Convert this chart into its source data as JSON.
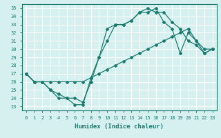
{
  "title": "",
  "xlabel": "Humidex (Indice chaleur)",
  "ylabel": "",
  "bg_color": "#d6f0f0",
  "grid_color": "#ffffff",
  "line_color": "#1a7a6e",
  "xlim": [
    -0.5,
    23.5
  ],
  "ylim": [
    22.5,
    35.5
  ],
  "yticks": [
    23,
    24,
    25,
    26,
    27,
    28,
    29,
    30,
    31,
    32,
    33,
    34,
    35
  ],
  "xticks": [
    0,
    1,
    2,
    3,
    4,
    5,
    6,
    7,
    8,
    9,
    10,
    11,
    12,
    13,
    14,
    15,
    16,
    17,
    18,
    19,
    20,
    21,
    22,
    23
  ],
  "line1_x": [
    0,
    1,
    2,
    3,
    4,
    5,
    6,
    7,
    8,
    9,
    10,
    11,
    12,
    13,
    14,
    15,
    16,
    17,
    18,
    19,
    20,
    21,
    22,
    23
  ],
  "line1_y": [
    27,
    26,
    26,
    25,
    24,
    24,
    23.2,
    23.2,
    26.5,
    29,
    32.5,
    33,
    33,
    33.5,
    34.5,
    35,
    34.5,
    34.5,
    33.3,
    32.5,
    31,
    30.5,
    29.5,
    30
  ],
  "line2_x": [
    0,
    1,
    2,
    3,
    4,
    5,
    6,
    7,
    8,
    9,
    10,
    11,
    12,
    13,
    14,
    15,
    16,
    17,
    18,
    19,
    20,
    21,
    22,
    23
  ],
  "line2_y": [
    27,
    26,
    26,
    26,
    26,
    26,
    26,
    26,
    26.5,
    27,
    27.5,
    28,
    28.5,
    29,
    29.5,
    30,
    30.5,
    31,
    31.5,
    32,
    32.5,
    31,
    29.5,
    30
  ],
  "line3_x": [
    0,
    1,
    2,
    3,
    4,
    5,
    6,
    7,
    8,
    9,
    10,
    11,
    12,
    13,
    14,
    15,
    16,
    17,
    18,
    19,
    20,
    21,
    22,
    23
  ],
  "line3_y": [
    27,
    26,
    26,
    25,
    24.5,
    24,
    24,
    23.5,
    26,
    29,
    31,
    33,
    33,
    33.5,
    34.5,
    34.5,
    35,
    33.3,
    32.5,
    29.5,
    32,
    31,
    30,
    30
  ]
}
